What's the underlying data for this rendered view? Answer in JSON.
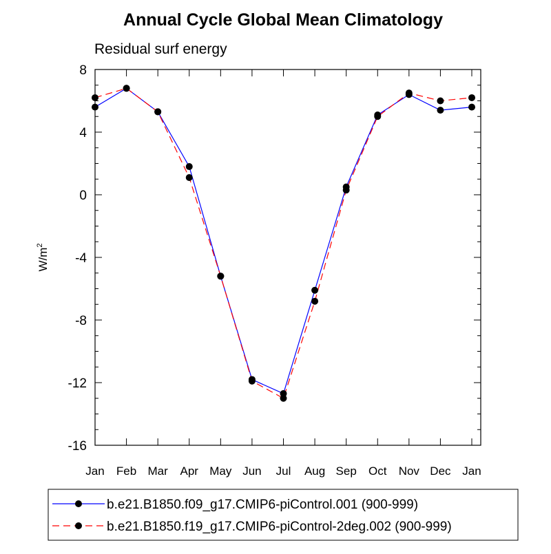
{
  "chart_data": {
    "type": "line",
    "title": "Annual Cycle Global Mean Climatology",
    "subtitle": "Residual surf energy",
    "ylabel": "W/m",
    "ylabel_superscript": "2",
    "xlabel": "",
    "categories": [
      "Jan",
      "Feb",
      "Mar",
      "Apr",
      "May",
      "Jun",
      "Jul",
      "Aug",
      "Sep",
      "Oct",
      "Nov",
      "Dec",
      "Jan"
    ],
    "ylim": [
      -16,
      8
    ],
    "yticks": [
      8,
      4,
      0,
      -4,
      -8,
      -12,
      -16
    ],
    "grid": false,
    "legend_placement": "bottom",
    "series": [
      {
        "name": "b.e21.B1850.f09_g17.CMIP6-piControl.001 (900-999)",
        "color": "#0000ff",
        "dash": "solid",
        "values": [
          5.6,
          6.8,
          5.3,
          1.8,
          -5.2,
          -11.8,
          -12.7,
          -6.1,
          0.5,
          5.1,
          6.4,
          5.4,
          5.6
        ]
      },
      {
        "name": "b.e21.B1850.f19_g17.CMIP6-piControl-2deg.002 (900-999)",
        "color": "#ff0000",
        "dash": "dashed",
        "values": [
          6.2,
          6.8,
          5.3,
          1.1,
          -5.2,
          -11.9,
          -13.0,
          -6.8,
          0.3,
          5.0,
          6.5,
          6.0,
          6.2
        ]
      }
    ]
  }
}
